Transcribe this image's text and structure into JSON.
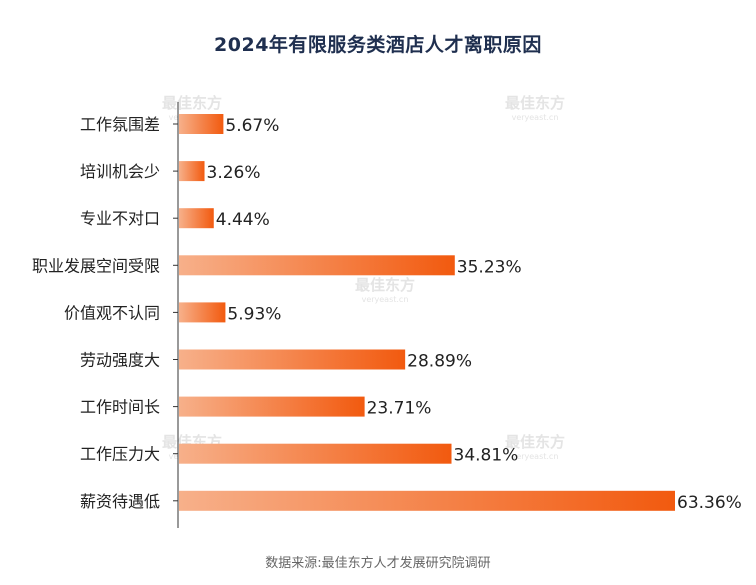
{
  "chart_data": {
    "type": "bar",
    "orientation": "horizontal",
    "title": "2024年有限服务类酒店人才离职原因",
    "categories": [
      "工作氛围差",
      "培训机会少",
      "专业不对口",
      "职业发展空间受限",
      "价值观不认同",
      "劳动强度大",
      "工作时间长",
      "工作压力大",
      "薪资待遇低"
    ],
    "values": [
      5.67,
      3.26,
      4.44,
      35.23,
      5.93,
      28.89,
      23.71,
      34.81,
      63.36
    ],
    "value_labels": [
      "5.67%",
      "3.26%",
      "4.44%",
      "35.23%",
      "5.93%",
      "28.89%",
      "23.71%",
      "34.81%",
      "63.36%"
    ],
    "unit": "%",
    "xlim": [
      0,
      63.36
    ],
    "xlabel": "",
    "ylabel": "",
    "grid": false,
    "legend": "none",
    "colors": {
      "bar_start": "#f7b08a",
      "bar_end": "#f25a0f",
      "axis": "#333333",
      "label": "#222222",
      "title": "#1f2f4f"
    }
  },
  "watermark": {
    "text": "最佳东方",
    "subtext": "veryeast.cn"
  },
  "source": "数据来源:最佳东方人才发展研究院调研"
}
